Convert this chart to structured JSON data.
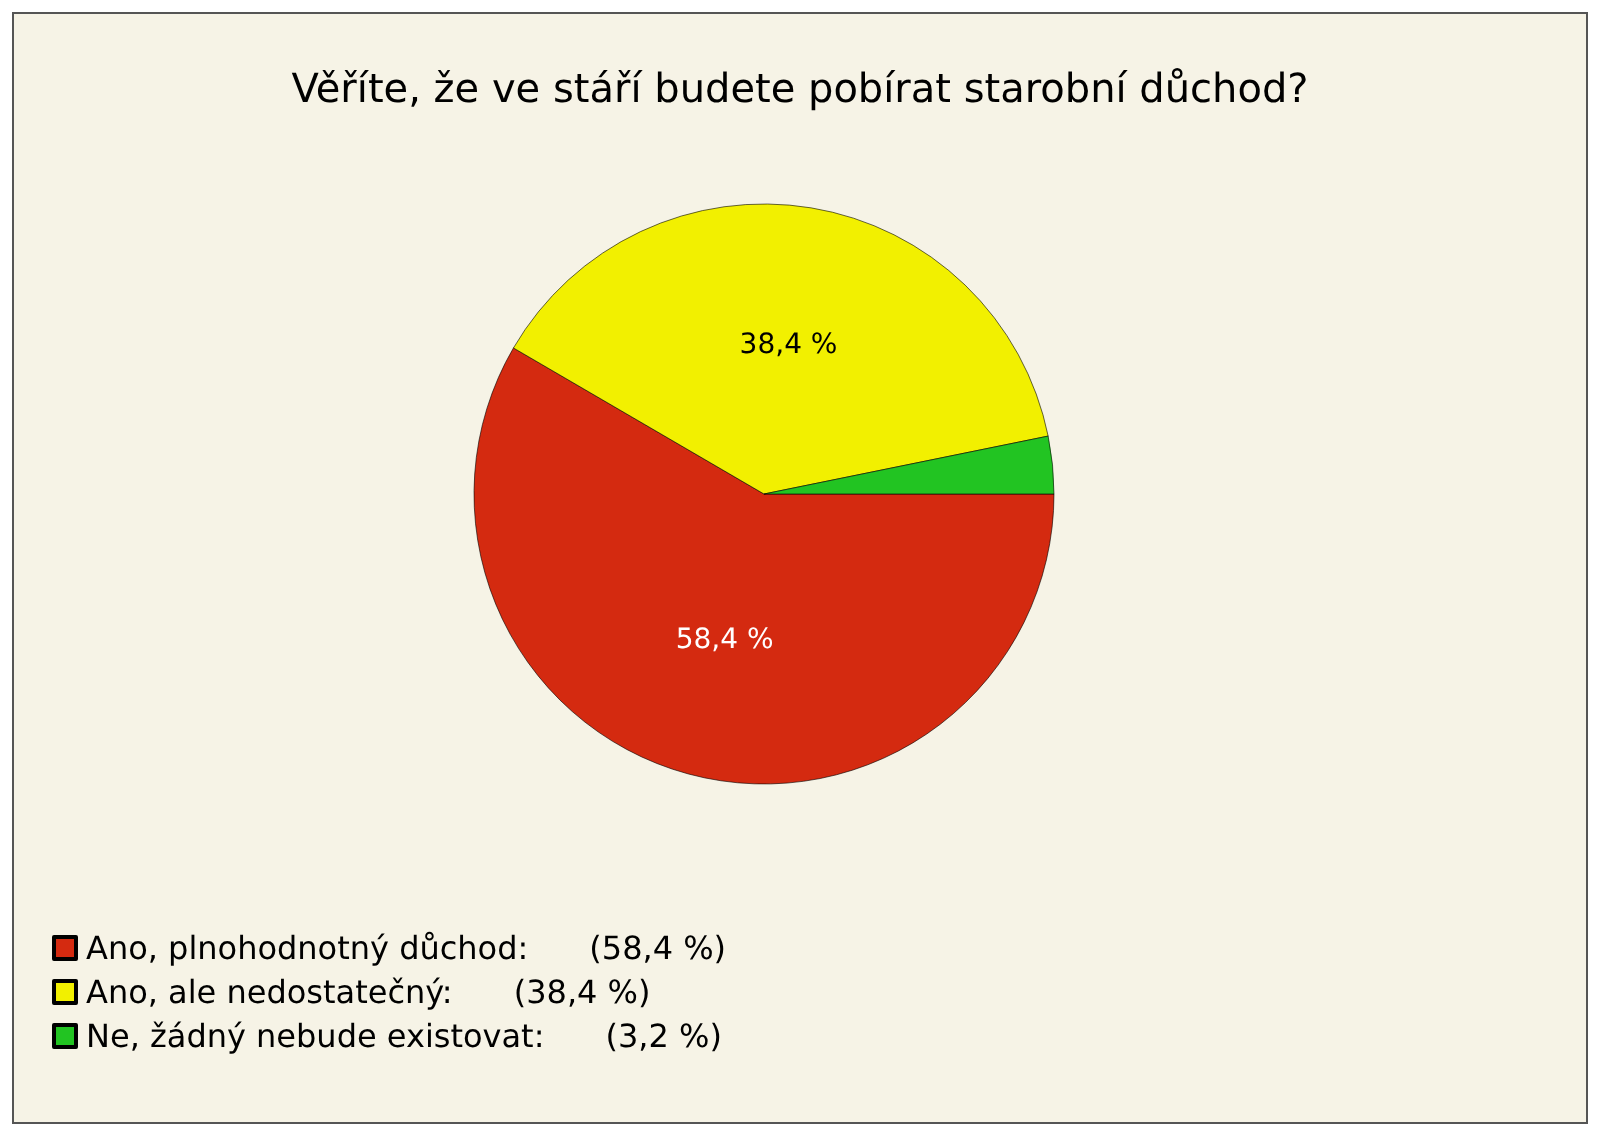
{
  "chart_data": {
    "type": "pie",
    "title": "Věříte, že ve stáří budete pobírat starobní důchod?",
    "categories": [
      "Ano, plnohodnotný důchod:      (58,4 %)",
      "Ano, ale nedostatečný:      (38,4 %)",
      "Ne, žádný nebude existovat:      (3,2 %)"
    ],
    "values": [
      58.4,
      38.4,
      3.2
    ],
    "value_labels": [
      "58,4 %",
      "38,4 %",
      null
    ],
    "colors": [
      "#d42a10",
      "#f2f000",
      "#22c422"
    ],
    "legend": "bottom left"
  }
}
